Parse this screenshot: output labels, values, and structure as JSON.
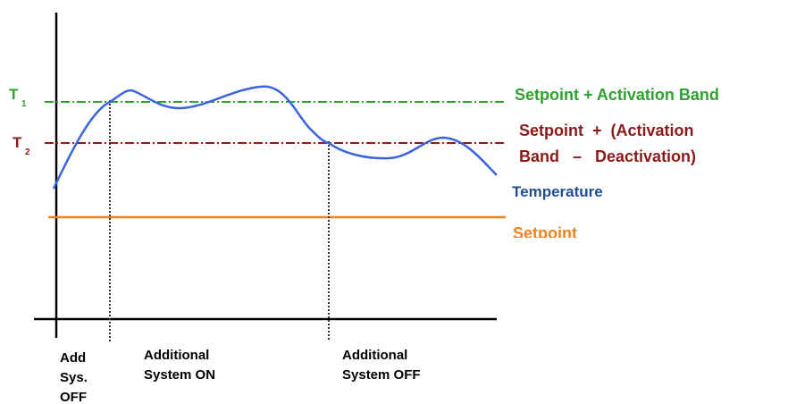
{
  "colors": {
    "axis": "#000000",
    "threshold_t1": "#2ea12e",
    "threshold_t2": "#8b1a1a",
    "temperature": "#3a63e0",
    "temperature_label": "#1f4f8f",
    "setpoint": "#f0821e",
    "marker": "#333333"
  },
  "thresholds": {
    "t1": {
      "symbol": "T",
      "subscript": "1",
      "label": "Setpoint + Activation Band"
    },
    "t2": {
      "symbol": "T",
      "subscript": "2",
      "label_line1": "Setpoint  +  (Activation",
      "label_line2": "Band   –   Deactivation)"
    }
  },
  "curves": {
    "temperature_label": "Temperature",
    "setpoint_label": "Setpoint"
  },
  "phases": {
    "phase1_lines": [
      "Add",
      "Sys.",
      "OFF"
    ],
    "phase2_lines": [
      "Additional",
      "System ON"
    ],
    "phase3_lines": [
      "Additional",
      "System OFF"
    ]
  }
}
